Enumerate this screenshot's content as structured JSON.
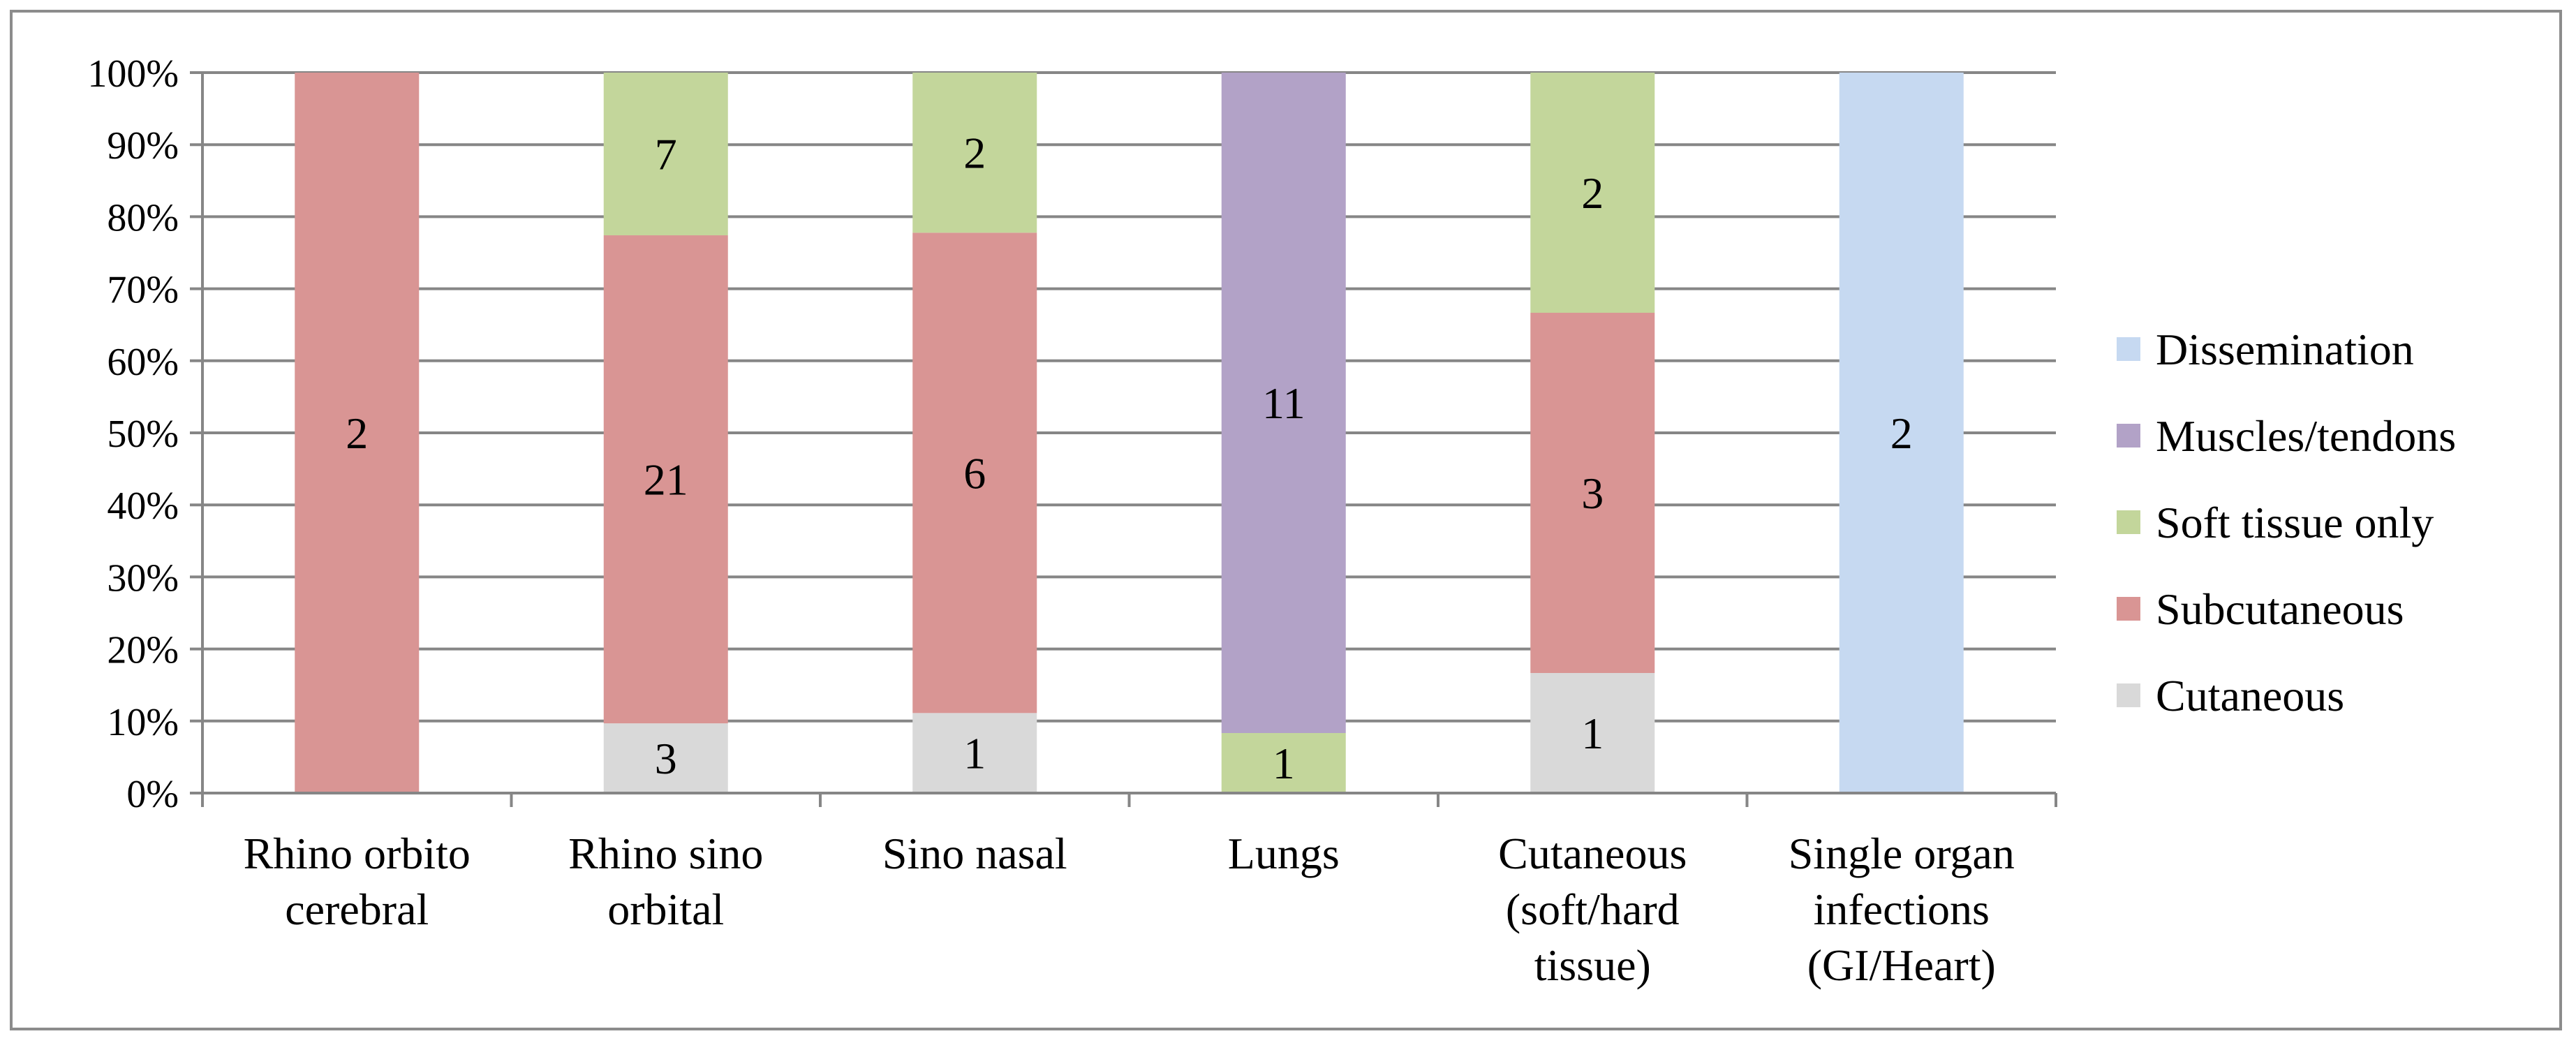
{
  "chart_data": {
    "type": "bar",
    "stacked": true,
    "percent_stacked": true,
    "categories": [
      [
        "Rhino orbito",
        "cerebral"
      ],
      [
        "Rhino sino",
        "orbital"
      ],
      [
        "Sino nasal"
      ],
      [
        "Lungs"
      ],
      [
        "Cutaneous",
        "(soft/hard",
        "tissue)"
      ],
      [
        "Single organ",
        "infections",
        "(GI/Heart)"
      ]
    ],
    "series": [
      {
        "name": "Cutaneous",
        "color": "#d9d9d9",
        "values": [
          0,
          3,
          1,
          0,
          1,
          0
        ]
      },
      {
        "name": "Subcutaneous",
        "color": "#d99594",
        "values": [
          2,
          21,
          6,
          0,
          3,
          0
        ]
      },
      {
        "name": "Soft tissue only",
        "color": "#c3d69b",
        "values": [
          0,
          7,
          2,
          1,
          2,
          0
        ]
      },
      {
        "name": "Muscles/tendons",
        "color": "#b2a2c7",
        "values": [
          0,
          0,
          0,
          11,
          0,
          0
        ]
      },
      {
        "name": "Dissemination",
        "color": "#c6d9f1",
        "values": [
          0,
          0,
          0,
          0,
          0,
          2
        ]
      }
    ],
    "legend_order": [
      "Dissemination",
      "Muscles/tendons",
      "Soft tissue only",
      "Subcutaneous",
      "Cutaneous"
    ],
    "y_ticks": [
      "0%",
      "10%",
      "20%",
      "30%",
      "40%",
      "50%",
      "60%",
      "70%",
      "80%",
      "90%",
      "100%"
    ],
    "ylim": [
      0,
      100
    ],
    "grid": true,
    "legend_position": "right"
  }
}
